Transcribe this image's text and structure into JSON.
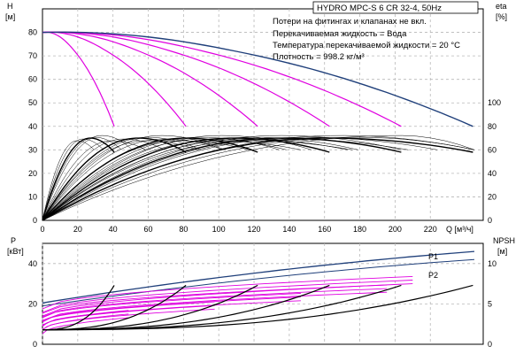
{
  "chart_data": [
    {
      "type": "line",
      "panel": "performance",
      "title": "HYDRO MPC-S 6 CR 32-4, 50Hz",
      "info_lines": [
        "Потери на фитингах и клапанах не вкл.",
        "Перекачиваемая жидкость = Вода",
        "Температура перекачиваемой жидкости = 20 °C",
        "Плотность = 998.2 кг/м³"
      ],
      "xlabel": "Q [м³/ч]",
      "ylabel": "H",
      "ylabel_unit": "[м]",
      "y2label": "eta",
      "y2label_unit": "[%]",
      "xlim": [
        0,
        250
      ],
      "ylim": [
        0,
        90
      ],
      "y2lim": [
        0,
        180
      ],
      "x_ticks": [
        0,
        20,
        40,
        60,
        80,
        100,
        120,
        140,
        160,
        180,
        200,
        220
      ],
      "y_ticks": [
        0,
        10,
        20,
        30,
        40,
        50,
        60,
        70,
        80
      ],
      "y2_ticks": [
        0,
        20,
        40,
        60,
        80,
        100
      ],
      "grid": true,
      "head_curves": {
        "pump_counts": [
          1,
          2,
          3,
          4,
          5,
          6
        ],
        "shutoff_head": 80,
        "end_head": 40,
        "flow_max_per_pump": 40.7,
        "color_partial": "#e000e0",
        "color_full": "#1f3f7a"
      },
      "efficiency_curves": {
        "peak_efficiency_percent": 70,
        "peak_flow_per_pump": 27,
        "end_efficiency_percent": 58,
        "color_main": "#000000"
      }
    },
    {
      "type": "line",
      "panel": "power-npsh",
      "ylabel": "P",
      "ylabel_unit": "[кВт]",
      "y2label": "NPSH",
      "y2label_unit": "[м]",
      "xlim": [
        0,
        250
      ],
      "ylim": [
        0,
        50
      ],
      "y2lim": [
        0,
        12.5
      ],
      "y_ticks": [
        0,
        20,
        40
      ],
      "y2_ticks": [
        0,
        5,
        10
      ],
      "grid": true,
      "series_labels": [
        "P1",
        "P2"
      ],
      "power_curves": {
        "p1_start": 20.5,
        "p1_end": 46,
        "p2_start": 19,
        "p2_end": 42,
        "color_full": "#1f3f7a",
        "color_partial": "#e000e0"
      },
      "npsh_curves": {
        "start": 1.8,
        "end_per_pump": 7.3,
        "color": "#000000"
      }
    }
  ],
  "colors": {
    "accent_magenta": "#e000e0",
    "accent_navy": "#1f3f7a",
    "grid": "#b8b8b8"
  }
}
